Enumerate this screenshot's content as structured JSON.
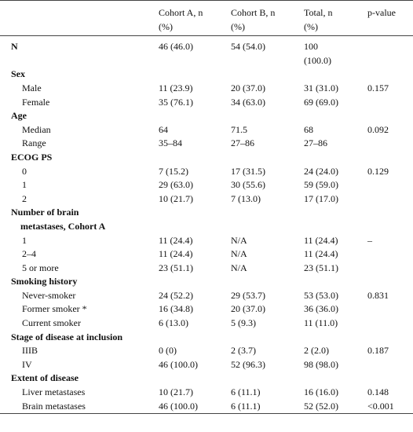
{
  "table": {
    "columns": [
      "Cohort A, n (%)",
      "Cohort B, n (%)",
      "Total, n (%)",
      "p-value"
    ],
    "total_row": [
      "N",
      "46 (46.0)",
      "54 (54.0)",
      "100 (100.0)"
    ],
    "sections": [
      {
        "heading": "Sex",
        "rows": [
          [
            "Male",
            "11 (23.9)",
            "20 (37.0)",
            "31 (31.0)",
            "0.157"
          ],
          [
            "Female",
            "35 (76.1)",
            "34 (63.0)",
            "69 (69.0)"
          ]
        ]
      },
      {
        "heading": "Age",
        "rows": [
          [
            "Median",
            "64",
            "71.5",
            "68",
            "0.092"
          ],
          [
            "Range",
            "35–84",
            "27–86",
            "27–86"
          ]
        ]
      },
      {
        "heading": "ECOG PS",
        "rows": [
          [
            "0",
            "7 (15.2)",
            "17 (31.5)",
            "24 (24.0)",
            "0.129"
          ],
          [
            "1",
            "29 (63.0)",
            "30 (55.6)",
            "59 (59.0)"
          ],
          [
            "2",
            "10 (21.7)",
            "7 (13.0)",
            "17 (17.0)"
          ]
        ]
      },
      {
        "heading": "Number of brain metastases, Cohort A",
        "rows": [
          [
            "1",
            "11 (24.4)",
            "N/A",
            "11 (24.4)",
            "–"
          ],
          [
            "2–4",
            "11 (24.4)",
            "N/A",
            "11 (24.4)"
          ],
          [
            "5 or more",
            "23 (51.1)",
            "N/A",
            "23 (51.1)"
          ]
        ]
      },
      {
        "heading": "Smoking history",
        "rows": [
          [
            "Never-smoker",
            "24 (52.2)",
            "29 (53.7)",
            "53 (53.0)",
            "0.831"
          ],
          [
            "Former smoker *",
            "16 (34.8)",
            "20 (37.0)",
            "36 (36.0)"
          ],
          [
            "Current smoker",
            "6 (13.0)",
            "5 (9.3)",
            "11 (11.0)"
          ]
        ]
      },
      {
        "heading": "Stage of disease at inclusion",
        "rows": [
          [
            "IIIB",
            "0 (0)",
            "2 (3.7)",
            "2 (2.0)",
            "0.187"
          ],
          [
            "IV",
            "46 (100.0)",
            "52 (96.3)",
            "98 (98.0)"
          ]
        ]
      },
      {
        "heading": "Extent of disease",
        "rows": [
          [
            "Liver metastases",
            "10 (21.7)",
            "6 (11.1)",
            "16 (16.0)",
            "0.148"
          ],
          [
            "Brain metastases",
            "46 (100.0)",
            "6 (11.1)",
            "52 (52.0)",
            "<0.001"
          ]
        ]
      }
    ]
  }
}
